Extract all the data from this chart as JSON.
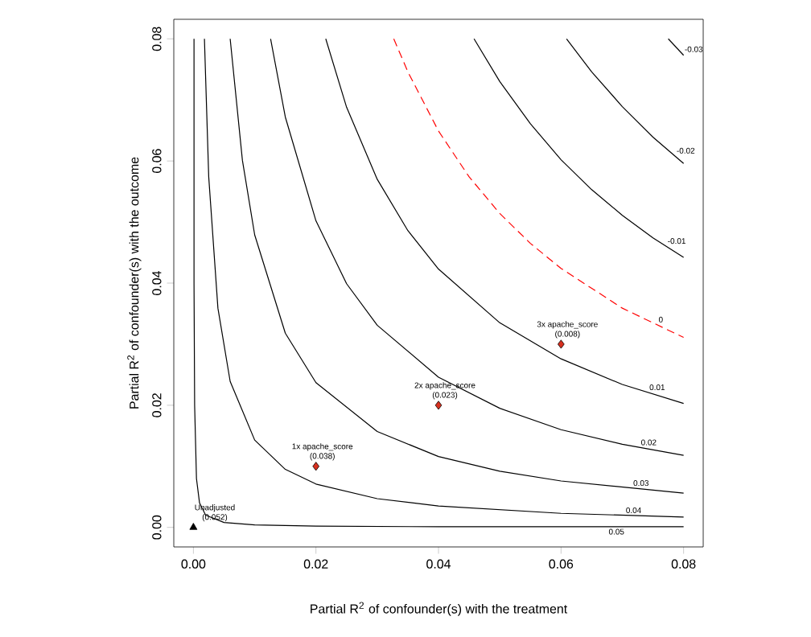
{
  "chart_data": {
    "type": "line",
    "xlabel": "Partial R$^{2}$ of confounder(s) with the treatment",
    "ylabel": "Partial R$^{2}$ of confounder(s) with the outcome",
    "xlim": [
      -0.0032,
      0.0832
    ],
    "ylim": [
      -0.0032,
      0.0832
    ],
    "xticks": [
      {
        "value": 0,
        "label": "0.00"
      },
      {
        "value": 0.02,
        "label": "0.02"
      },
      {
        "value": 0.04,
        "label": "0.04"
      },
      {
        "value": 0.06,
        "label": "0.06"
      },
      {
        "value": 0.08,
        "label": "0.08"
      }
    ],
    "yticks": [
      {
        "value": 0,
        "label": "0.00"
      },
      {
        "value": 0.02,
        "label": "0.02"
      },
      {
        "value": 0.04,
        "label": "0.04"
      },
      {
        "value": 0.06,
        "label": "0.06"
      },
      {
        "value": 0.08,
        "label": "0.08"
      }
    ],
    "grid": false,
    "series": [
      {
        "name": "0.05",
        "color": "#000000",
        "x": [
          0.0001,
          0.0001,
          0.0002,
          0.0005,
          0.001,
          0.002,
          0.005,
          0.01,
          0.02,
          0.04,
          0.08
        ],
        "values": [
          0.08,
          0.04,
          0.02,
          0.008,
          0.004,
          0.002,
          0.0008,
          0.0004,
          0.0002,
          0.0001,
          0.0001
        ]
      },
      {
        "name": "0.04",
        "color": "#000000",
        "x": [
          0.0018,
          0.0025,
          0.004,
          0.006,
          0.01,
          0.015,
          0.02,
          0.03,
          0.04,
          0.06,
          0.08
        ],
        "values": [
          0.08,
          0.0574,
          0.0359,
          0.0239,
          0.0143,
          0.0095,
          0.0071,
          0.0047,
          0.0035,
          0.0023,
          0.0017
        ]
      },
      {
        "name": "0.03",
        "color": "#000000",
        "x": [
          0.006,
          0.008,
          0.01,
          0.015,
          0.02,
          0.03,
          0.04,
          0.05,
          0.06,
          0.08
        ],
        "values": [
          0.08,
          0.0601,
          0.0479,
          0.0318,
          0.0237,
          0.0157,
          0.0116,
          0.0092,
          0.0076,
          0.0056
        ]
      },
      {
        "name": "0.02",
        "color": "#000000",
        "x": [
          0.0126,
          0.015,
          0.02,
          0.025,
          0.03,
          0.04,
          0.05,
          0.06,
          0.07,
          0.08
        ],
        "values": [
          0.08,
          0.0672,
          0.0502,
          0.0399,
          0.0331,
          0.0246,
          0.0195,
          0.016,
          0.0136,
          0.0118
        ]
      },
      {
        "name": "0.01",
        "color": "#000000",
        "x": [
          0.0216,
          0.025,
          0.03,
          0.035,
          0.04,
          0.05,
          0.06,
          0.07,
          0.08
        ],
        "values": [
          0.08,
          0.0688,
          0.057,
          0.0486,
          0.0423,
          0.0335,
          0.0276,
          0.0234,
          0.0203
        ]
      },
      {
        "name": "0",
        "color": "#ff0000",
        "line_style": "dashed",
        "x": [
          0.0327,
          0.035,
          0.04,
          0.045,
          0.05,
          0.055,
          0.06,
          0.07,
          0.08
        ],
        "values": [
          0.08,
          0.0746,
          0.0649,
          0.0574,
          0.0514,
          0.0465,
          0.0424,
          0.0359,
          0.0311
        ]
      },
      {
        "name": "-0.01",
        "color": "#000000",
        "x": [
          0.0458,
          0.05,
          0.055,
          0.06,
          0.065,
          0.07,
          0.075,
          0.08
        ],
        "values": [
          0.08,
          0.073,
          0.0661,
          0.0602,
          0.0553,
          0.0511,
          0.0474,
          0.0442
        ]
      },
      {
        "name": "-0.02",
        "color": "#000000",
        "x": [
          0.0609,
          0.065,
          0.07,
          0.075,
          0.08
        ],
        "values": [
          0.08,
          0.0746,
          0.0689,
          0.0639,
          0.0596
        ]
      },
      {
        "name": "-0.03",
        "color": "#000000",
        "x": [
          0.0775,
          0.08
        ],
        "values": [
          0.08,
          0.0773
        ]
      },
      {
        "type": "scatter",
        "marker": "triangle",
        "color": "#000000",
        "x": [
          0
        ],
        "values": [
          0
        ]
      },
      {
        "type": "scatter",
        "marker": "diamond",
        "color": "#d7301f",
        "x": [
          0.02,
          0.04,
          0.06
        ],
        "values": [
          0.01,
          0.02,
          0.03
        ]
      }
    ],
    "annotations": [
      {
        "text": "Unadjusted",
        "x": 0,
        "y": 0
      },
      {
        "text": "(0.052)",
        "x": 0,
        "y": 0
      },
      {
        "text": "1x apache_score",
        "x": 0.02,
        "y": 0.01
      },
      {
        "text": "(0.038)",
        "x": 0.02,
        "y": 0.01
      },
      {
        "text": "2x apache_score",
        "x": 0.04,
        "y": 0.02
      },
      {
        "text": "(0.023)",
        "x": 0.04,
        "y": 0.02
      },
      {
        "text": "3x apache_score",
        "x": 0.06,
        "y": 0.03
      },
      {
        "text": "(0.008)",
        "x": 0.06,
        "y": 0.03
      }
    ]
  }
}
